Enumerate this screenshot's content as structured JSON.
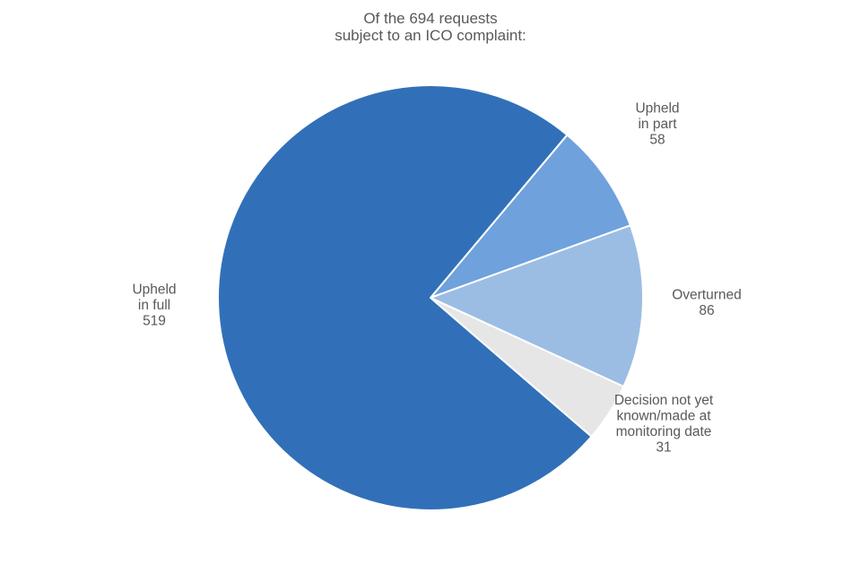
{
  "chart_data": {
    "type": "pie",
    "title_lines": [
      "Of the 694 requests",
      "subject to an ICO complaint:"
    ],
    "total": 694,
    "slices": [
      {
        "label_lines": [
          "Upheld",
          "in part"
        ],
        "value": 58,
        "color": "#6fa1dc"
      },
      {
        "label_lines": [
          "Overturned"
        ],
        "value": 86,
        "color": "#9bbde4"
      },
      {
        "label_lines": [
          "Decision not yet",
          "known/made at",
          "monitoring date"
        ],
        "value": 31,
        "color": "#e6e6e6"
      },
      {
        "label_lines": [
          "Upheld",
          "in full"
        ],
        "value": 519,
        "color": "#3170b8"
      }
    ]
  }
}
